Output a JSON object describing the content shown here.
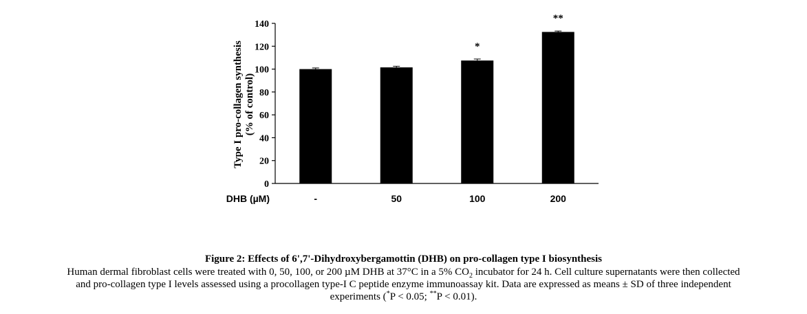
{
  "chart_data": {
    "type": "bar",
    "categories": [
      "-",
      "50",
      "100",
      "200"
    ],
    "values": [
      100,
      101.5,
      107.5,
      132.5
    ],
    "errors": [
      1,
      1,
      1.3,
      0.8
    ],
    "significance": [
      "",
      "",
      "*",
      "**"
    ],
    "category_axis_label": "DHB (µM)",
    "ylabel_line1": "Type I pro-collagen synthesis",
    "ylabel_line2": "(% of control)",
    "ylim": [
      0,
      140
    ],
    "yticks": [
      "0",
      "20",
      "40",
      "60",
      "80",
      "100",
      "120",
      "140"
    ],
    "bar_color": "#000000",
    "grid": false
  },
  "caption": {
    "title": "Figure 2: Effects of 6',7'-Dihydroxybergamottin (DHB) on pro-collagen type I biosynthesis",
    "line1_a": "Human dermal fibroblast cells were treated with 0, 50, 100, or 200 µM DHB at 37°C in a 5% CO",
    "line1_sub": "2",
    "line1_b": " incubator for 24 h. Cell culture supernatants were then collected",
    "line2": "and pro-collagen type I levels assessed using a procollagen type-I C peptide enzyme immunoassay kit. Data are expressed as means ± SD of three independent",
    "line3_a": "experiments (",
    "line3_sup1": "*",
    "line3_b": "P < 0.05; ",
    "line3_sup2": "**",
    "line3_c": "P < 0.01)."
  }
}
